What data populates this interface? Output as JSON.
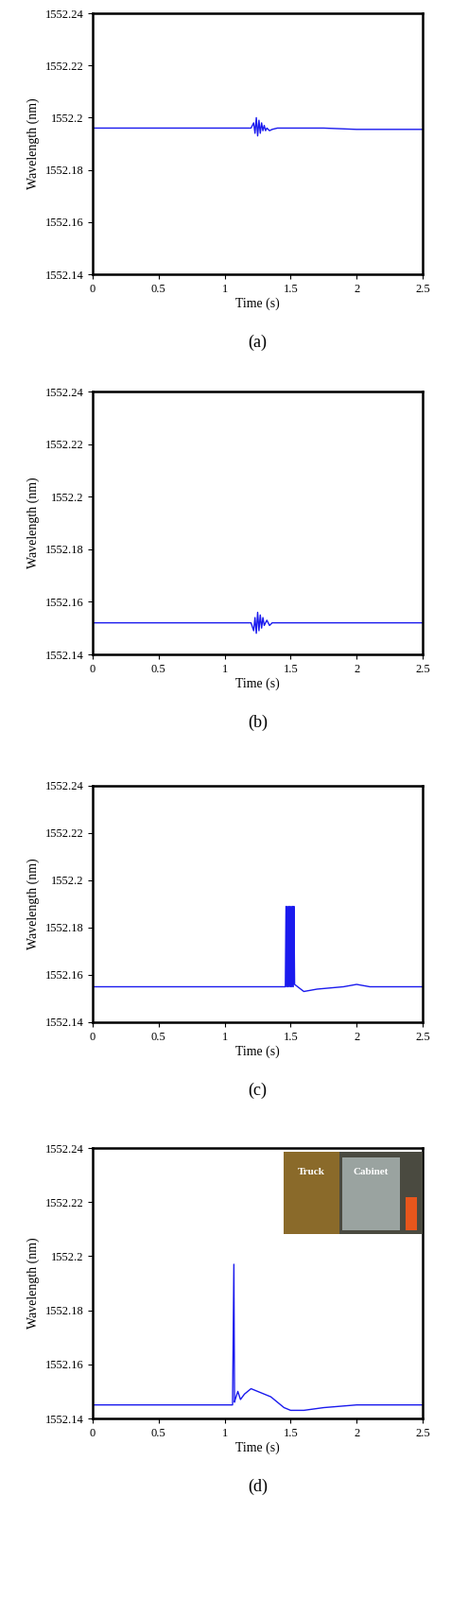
{
  "chart_data": [
    {
      "type": "line",
      "caption": "(a)",
      "x_label": "Time (s)",
      "y_label": "Wavelength (nm)",
      "color": "#1a1aee",
      "x": [
        0,
        0.25,
        0.5,
        0.75,
        1.0,
        1.2,
        1.22,
        1.23,
        1.24,
        1.25,
        1.26,
        1.27,
        1.28,
        1.29,
        1.3,
        1.31,
        1.32,
        1.34,
        1.36,
        1.4,
        1.5,
        1.75,
        2.0,
        2.25,
        2.5
      ],
      "values": [
        1552.196,
        1552.196,
        1552.196,
        1552.196,
        1552.196,
        1552.196,
        1552.198,
        1552.194,
        1552.2,
        1552.193,
        1552.199,
        1552.194,
        1552.198,
        1552.195,
        1552.197,
        1552.195,
        1552.196,
        1552.195,
        1552.1955,
        1552.196,
        1552.196,
        1552.196,
        1552.1955,
        1552.1955,
        1552.1955
      ],
      "xlim": [
        0,
        2.5
      ],
      "ylim": [
        1552.14,
        1552.24
      ],
      "xticks": [
        0,
        0.5,
        1,
        1.5,
        2,
        2.5
      ],
      "yticks": [
        1552.14,
        1552.16,
        1552.18,
        1552.2,
        1552.22,
        1552.24
      ]
    },
    {
      "type": "line",
      "caption": "(b)",
      "x_label": "Time (s)",
      "y_label": "Wavelength (nm)",
      "color": "#1a1aee",
      "x": [
        0,
        0.5,
        1.0,
        1.2,
        1.22,
        1.23,
        1.24,
        1.25,
        1.26,
        1.27,
        1.28,
        1.29,
        1.3,
        1.32,
        1.34,
        1.36,
        1.4,
        1.5,
        2.0,
        2.5
      ],
      "values": [
        1552.152,
        1552.152,
        1552.152,
        1552.152,
        1552.149,
        1552.154,
        1552.148,
        1552.156,
        1552.149,
        1552.155,
        1552.15,
        1552.154,
        1552.151,
        1552.153,
        1552.151,
        1552.152,
        1552.152,
        1552.152,
        1552.152,
        1552.152
      ],
      "xlim": [
        0,
        2.5
      ],
      "ylim": [
        1552.14,
        1552.24
      ],
      "xticks": [
        0,
        0.5,
        1,
        1.5,
        2,
        2.5
      ],
      "yticks": [
        1552.14,
        1552.16,
        1552.18,
        1552.2,
        1552.22,
        1552.24
      ]
    },
    {
      "type": "line",
      "caption": "(c)",
      "x_label": "Time (s)",
      "y_label": "Wavelength (nm)",
      "color": "#1a1aee",
      "x": [
        0,
        0.5,
        1.0,
        1.4,
        1.46,
        1.465,
        1.47,
        1.475,
        1.48,
        1.485,
        1.49,
        1.495,
        1.5,
        1.505,
        1.51,
        1.515,
        1.52,
        1.525,
        1.53,
        1.6,
        1.7,
        1.9,
        2.0,
        2.1,
        2.3,
        2.5
      ],
      "values": [
        1552.155,
        1552.155,
        1552.155,
        1552.155,
        1552.155,
        1552.189,
        1552.155,
        1552.189,
        1552.155,
        1552.189,
        1552.155,
        1552.189,
        1552.155,
        1552.189,
        1552.155,
        1552.189,
        1552.155,
        1552.189,
        1552.156,
        1552.153,
        1552.154,
        1552.155,
        1552.156,
        1552.155,
        1552.155,
        1552.155
      ],
      "xlim": [
        0,
        2.5
      ],
      "ylim": [
        1552.14,
        1552.24
      ],
      "xticks": [
        0,
        0.5,
        1,
        1.5,
        2,
        2.5
      ],
      "yticks": [
        1552.14,
        1552.16,
        1552.18,
        1552.2,
        1552.22,
        1552.24
      ]
    },
    {
      "type": "line",
      "caption": "(d)",
      "x_label": "Time (s)",
      "y_label": "Wavelength (nm)",
      "color": "#1a1aee",
      "x": [
        0,
        0.5,
        1.0,
        1.06,
        1.07,
        1.075,
        1.08,
        1.1,
        1.12,
        1.15,
        1.2,
        1.25,
        1.3,
        1.35,
        1.4,
        1.45,
        1.5,
        1.6,
        1.75,
        2.0,
        2.25,
        2.5
      ],
      "values": [
        1552.145,
        1552.145,
        1552.145,
        1552.145,
        1552.197,
        1552.146,
        1552.147,
        1552.15,
        1552.147,
        1552.149,
        1552.151,
        1552.15,
        1552.149,
        1552.148,
        1552.146,
        1552.144,
        1552.143,
        1552.143,
        1552.144,
        1552.145,
        1552.145,
        1552.145
      ],
      "xlim": [
        0,
        2.5
      ],
      "ylim": [
        1552.14,
        1552.24
      ],
      "xticks": [
        0,
        0.5,
        1,
        1.5,
        2,
        2.5
      ],
      "yticks": [
        1552.14,
        1552.16,
        1552.18,
        1552.2,
        1552.22,
        1552.24
      ],
      "annotations": [
        "Truck",
        "Cabinet"
      ]
    }
  ]
}
